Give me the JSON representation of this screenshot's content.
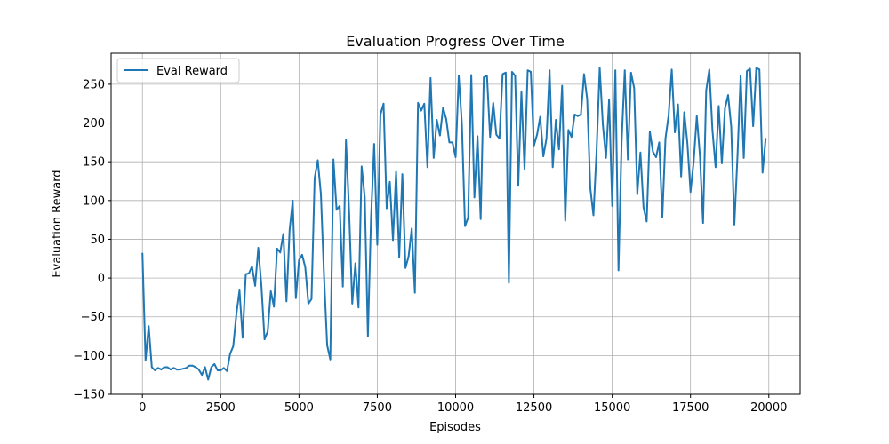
{
  "chart_data": {
    "type": "line",
    "title": "Evaluation Progress Over Time",
    "xlabel": "Episodes",
    "ylabel": "Evaluation Reward",
    "xlim": [
      -1000,
      21000
    ],
    "ylim": [
      -150,
      290
    ],
    "xticks": [
      0,
      2500,
      5000,
      7500,
      10000,
      12500,
      15000,
      17500,
      20000
    ],
    "yticks": [
      -150,
      -100,
      -50,
      0,
      50,
      100,
      150,
      200,
      250
    ],
    "grid": true,
    "legend": "top-left",
    "colors": {
      "series": "#1f77b4",
      "grid": "#b0b0b0"
    },
    "series": [
      {
        "name": "Eval Reward",
        "x": [
          0,
          100,
          200,
          300,
          400,
          500,
          600,
          700,
          800,
          900,
          1000,
          1100,
          1200,
          1300,
          1400,
          1500,
          1600,
          1700,
          1800,
          1900,
          2000,
          2100,
          2200,
          2300,
          2400,
          2500,
          2600,
          2700,
          2800,
          2900,
          3000,
          3100,
          3200,
          3300,
          3400,
          3500,
          3600,
          3700,
          3800,
          3900,
          4000,
          4100,
          4200,
          4300,
          4400,
          4500,
          4600,
          4700,
          4800,
          4900,
          5000,
          5100,
          5200,
          5300,
          5400,
          5500,
          5600,
          5700,
          5800,
          5900,
          6000,
          6100,
          6200,
          6300,
          6400,
          6500,
          6600,
          6700,
          6800,
          6900,
          7000,
          7100,
          7200,
          7300,
          7400,
          7500,
          7600,
          7700,
          7800,
          7900,
          8000,
          8100,
          8200,
          8300,
          8400,
          8500,
          8600,
          8700,
          8800,
          8900,
          9000,
          9100,
          9200,
          9300,
          9400,
          9500,
          9600,
          9700,
          9800,
          9900,
          10000,
          10100,
          10200,
          10300,
          10400,
          10500,
          10600,
          10700,
          10800,
          10900,
          11000,
          11100,
          11200,
          11300,
          11400,
          11500,
          11600,
          11700,
          11800,
          11900,
          12000,
          12100,
          12200,
          12300,
          12400,
          12500,
          12600,
          12700,
          12800,
          12900,
          13000,
          13100,
          13200,
          13300,
          13400,
          13500,
          13600,
          13700,
          13800,
          13900,
          14000,
          14100,
          14200,
          14300,
          14400,
          14500,
          14600,
          14700,
          14800,
          14900,
          15000,
          15100,
          15200,
          15300,
          15400,
          15500,
          15600,
          15700,
          15800,
          15900,
          16000,
          16100,
          16200,
          16300,
          16400,
          16500,
          16600,
          16700,
          16800,
          16900,
          17000,
          17100,
          17200,
          17300,
          17400,
          17500,
          17600,
          17700,
          17800,
          17900,
          18000,
          18100,
          18200,
          18300,
          18400,
          18500,
          18600,
          18700,
          18800,
          18900,
          19000,
          19100,
          19200,
          19300,
          19400,
          19500,
          19600,
          19700,
          19800,
          19900
        ],
        "y": [
          32,
          -106,
          -62,
          -115,
          -119,
          -116,
          -118,
          -115,
          -115,
          -118,
          -116,
          -118,
          -118,
          -117,
          -116,
          -113,
          -113,
          -115,
          -118,
          -125,
          -115,
          -131,
          -115,
          -111,
          -119,
          -119,
          -116,
          -120,
          -98,
          -88,
          -47,
          -16,
          -77,
          5,
          6,
          15,
          -10,
          39,
          -10,
          -79,
          -69,
          -17,
          -37,
          38,
          33,
          57,
          -30,
          62,
          100,
          -26,
          23,
          30,
          14,
          -33,
          -27,
          129,
          152,
          108,
          2,
          -87,
          -105,
          153,
          88,
          93,
          -11,
          178,
          86,
          -33,
          19,
          -38,
          144,
          104,
          -75,
          77,
          173,
          43,
          211,
          225,
          90,
          124,
          49,
          137,
          27,
          134,
          13,
          28,
          64,
          -19,
          226,
          216,
          225,
          143,
          258,
          155,
          204,
          184,
          220,
          205,
          175,
          175,
          156,
          261,
          199,
          67,
          78,
          262,
          104,
          183,
          76,
          259,
          261,
          182,
          226,
          185,
          180,
          263,
          265,
          -6,
          266,
          261,
          119,
          240,
          141,
          268,
          266,
          171,
          185,
          208,
          157,
          180,
          268,
          143,
          204,
          166,
          248,
          74,
          191,
          182,
          211,
          209,
          211,
          263,
          231,
          116,
          81,
          164,
          271,
          198,
          155,
          230,
          93,
          268,
          10,
          177,
          268,
          153,
          265,
          245,
          108,
          162,
          91,
          73,
          189,
          163,
          156,
          175,
          79,
          180,
          210,
          269,
          188,
          224,
          131,
          214,
          174,
          111,
          150,
          209,
          158,
          71,
          242,
          269,
          191,
          143,
          222,
          148,
          219,
          236,
          195,
          69,
          158,
          261,
          155,
          267,
          270,
          196,
          271,
          269,
          136,
          180
        ]
      }
    ]
  }
}
